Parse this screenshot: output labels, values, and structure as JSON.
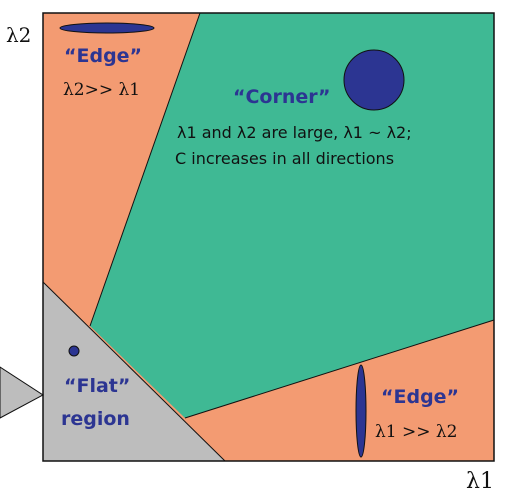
{
  "colors": {
    "edge_region": "#f39b72",
    "corner_region": "#3fb994",
    "flat_region": "#bdbdbd",
    "ellipse": "#2c3592",
    "label": "#2c3592",
    "border": "#111111"
  },
  "axes": {
    "x_label": "λ1",
    "y_label": "λ2"
  },
  "regions": {
    "edge_top": {
      "title": "“Edge”",
      "relation": "λ2>> λ1"
    },
    "corner": {
      "title": "“Corner”",
      "line1": "λ1 and λ2 are large,  λ1 ~ λ2;",
      "line2": "C increases in all directions"
    },
    "flat": {
      "title": "“Flat”",
      "subtitle": "region"
    },
    "edge_bottom": {
      "title": "“Edge”",
      "relation": "λ1 >> λ2"
    }
  }
}
